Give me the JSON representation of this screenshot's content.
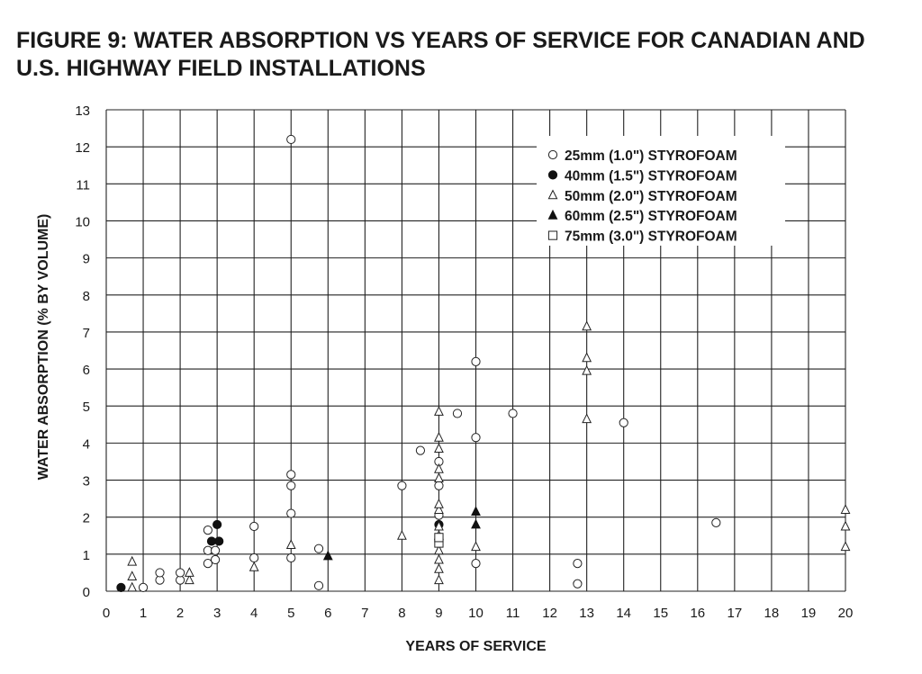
{
  "chart_data": {
    "type": "scatter",
    "title": "FIGURE 9: WATER ABSORPTION VS YEARS OF SERVICE FOR CANADIAN AND U.S. HIGHWAY FIELD INSTALLATIONS",
    "xlabel": "YEARS OF SERVICE",
    "ylabel": "WATER ABSORPTION (% BY VOLUME)",
    "xlim": [
      0,
      20
    ],
    "ylim": [
      0,
      13
    ],
    "x_ticks": [
      0,
      1,
      2,
      3,
      4,
      5,
      6,
      7,
      8,
      9,
      10,
      11,
      12,
      13,
      14,
      15,
      16,
      17,
      18,
      19,
      20
    ],
    "y_ticks": [
      0,
      1,
      2,
      3,
      4,
      5,
      6,
      7,
      8,
      9,
      10,
      11,
      12,
      13
    ],
    "grid": true,
    "legend_position": "top-right",
    "series": [
      {
        "name": "25mm (1.0\") STYROFOAM",
        "marker": "open-circle",
        "points": [
          [
            1.0,
            0.1
          ],
          [
            1.45,
            0.3
          ],
          [
            1.45,
            0.5
          ],
          [
            2.0,
            0.3
          ],
          [
            2.0,
            0.5
          ],
          [
            2.75,
            0.75
          ],
          [
            2.75,
            1.65
          ],
          [
            2.75,
            1.1
          ],
          [
            2.95,
            0.85
          ],
          [
            2.95,
            1.1
          ],
          [
            4.0,
            0.9
          ],
          [
            4.0,
            1.75
          ],
          [
            5.0,
            0.9
          ],
          [
            5.0,
            2.1
          ],
          [
            5.0,
            2.85
          ],
          [
            5.0,
            3.15
          ],
          [
            5.0,
            12.2
          ],
          [
            5.75,
            0.15
          ],
          [
            5.75,
            1.15
          ],
          [
            8.0,
            2.85
          ],
          [
            8.5,
            3.8
          ],
          [
            9.0,
            2.85
          ],
          [
            9.0,
            3.5
          ],
          [
            9.0,
            2.05
          ],
          [
            9.5,
            4.8
          ],
          [
            10.0,
            0.75
          ],
          [
            10.0,
            4.15
          ],
          [
            10.0,
            6.2
          ],
          [
            11.0,
            4.8
          ],
          [
            12.75,
            0.2
          ],
          [
            12.75,
            0.75
          ],
          [
            14.0,
            4.55
          ],
          [
            16.5,
            1.85
          ]
        ]
      },
      {
        "name": "40mm (1.5\") STYROFOAM",
        "marker": "filled-circle",
        "points": [
          [
            0.4,
            0.1
          ],
          [
            2.85,
            1.35
          ],
          [
            3.0,
            1.8
          ],
          [
            3.05,
            1.35
          ],
          [
            9.0,
            1.8
          ]
        ]
      },
      {
        "name": "50mm (2.0\") STYROFOAM",
        "marker": "open-triangle",
        "points": [
          [
            0.7,
            0.1
          ],
          [
            0.7,
            0.4
          ],
          [
            0.7,
            0.8
          ],
          [
            2.25,
            0.3
          ],
          [
            2.25,
            0.5
          ],
          [
            4.0,
            0.65
          ],
          [
            5.0,
            1.25
          ],
          [
            8.0,
            1.5
          ],
          [
            9.0,
            0.3
          ],
          [
            9.0,
            0.6
          ],
          [
            9.0,
            0.85
          ],
          [
            9.0,
            1.1
          ],
          [
            9.0,
            1.5
          ],
          [
            9.0,
            1.75
          ],
          [
            9.0,
            2.2
          ],
          [
            9.0,
            2.35
          ],
          [
            9.0,
            3.05
          ],
          [
            9.0,
            3.3
          ],
          [
            9.0,
            3.85
          ],
          [
            9.0,
            4.15
          ],
          [
            9.0,
            4.85
          ],
          [
            10.0,
            1.2
          ],
          [
            13.0,
            4.65
          ],
          [
            13.0,
            5.95
          ],
          [
            13.0,
            6.3
          ],
          [
            13.0,
            7.15
          ],
          [
            20.0,
            1.2
          ],
          [
            20.0,
            1.75
          ],
          [
            20.0,
            2.2
          ]
        ]
      },
      {
        "name": "60mm (2.5\") STYROFOAM",
        "marker": "filled-triangle",
        "points": [
          [
            6.0,
            0.95
          ],
          [
            10.0,
            1.8
          ],
          [
            10.0,
            2.15
          ]
        ]
      },
      {
        "name": "75mm (3.0\") STYROFOAM",
        "marker": "open-square",
        "points": [
          [
            9.0,
            1.3
          ],
          [
            9.0,
            1.45
          ]
        ]
      }
    ]
  }
}
